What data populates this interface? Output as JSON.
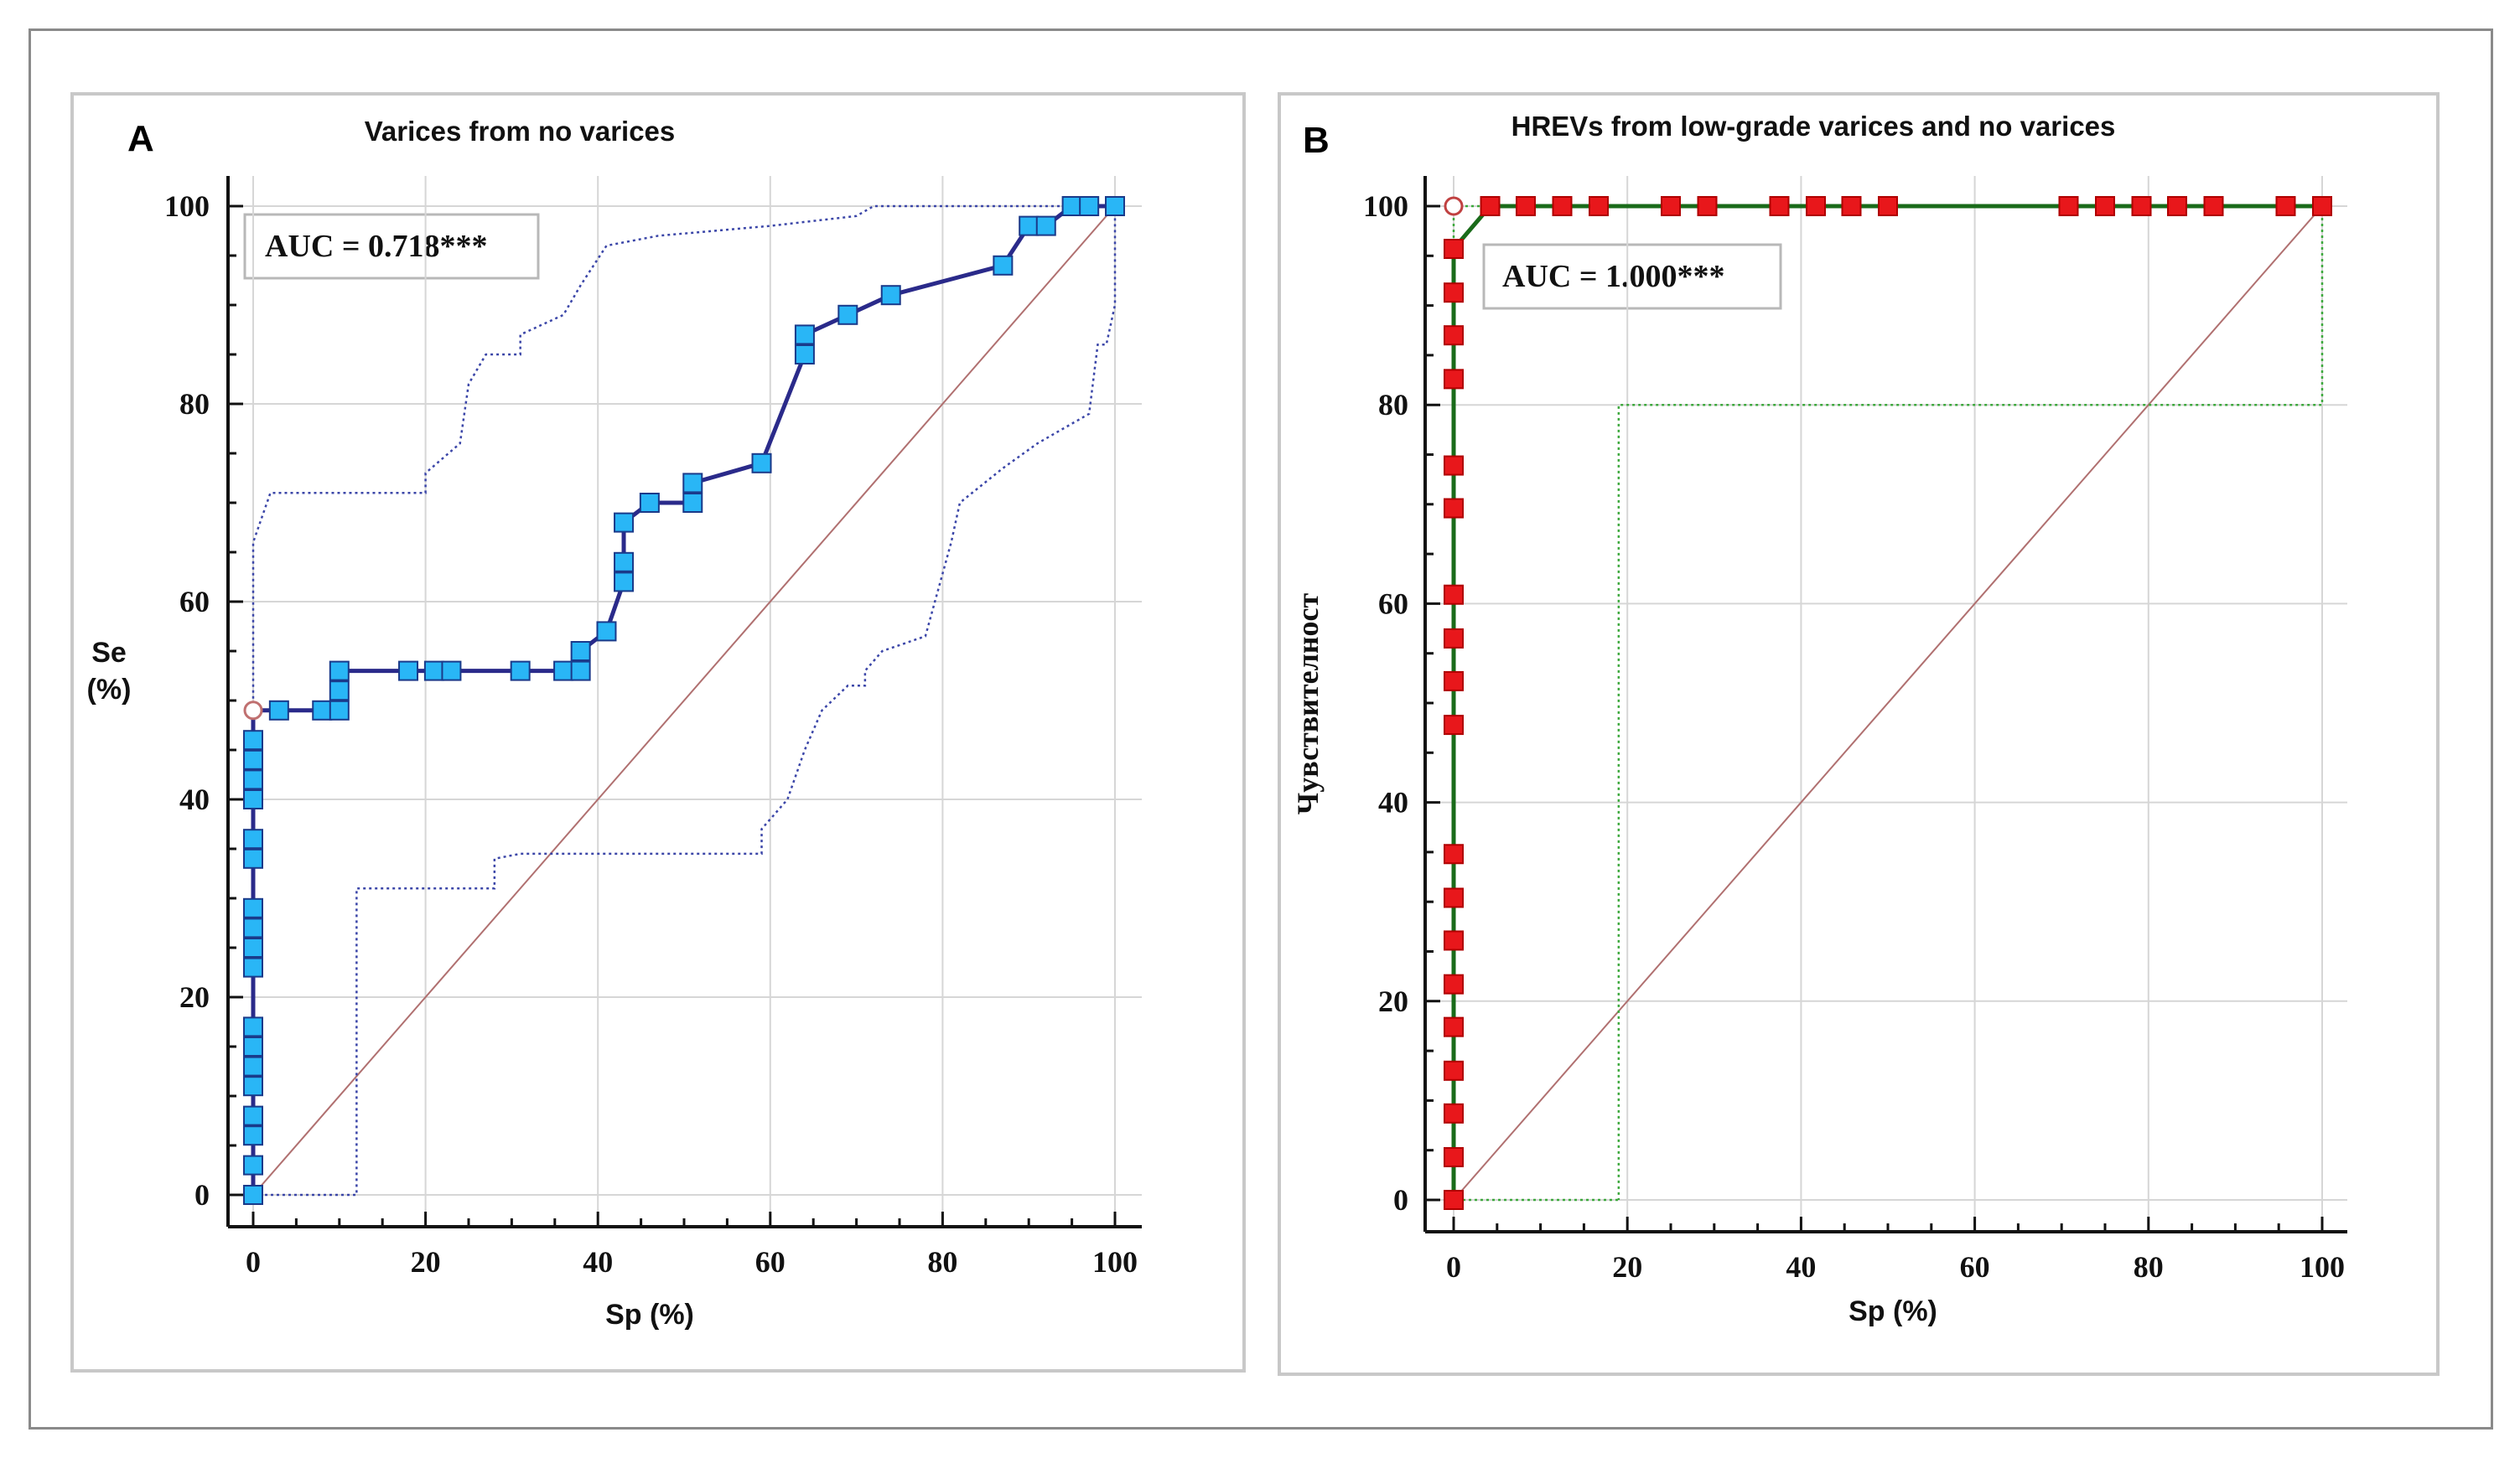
{
  "colors": {
    "panel_a_curve": "#2a2a8a",
    "panel_a_marker": "#29b6f6",
    "panel_a_ci": "#3b46a8",
    "panel_b_curve": "#1a6b1a",
    "panel_b_marker": "#e8171b",
    "panel_b_ci": "#3ca83c",
    "diagonal": "#b07070",
    "grid": "#d6d6d6"
  },
  "chart_data": [
    {
      "panel": "A",
      "type": "line",
      "title": "Varices from no varices",
      "xlabel": "Sp (%)",
      "ylabel": [
        "Se",
        "(%)"
      ],
      "xlim": [
        0,
        100
      ],
      "ylim": [
        0,
        100
      ],
      "xticks": [
        0,
        20,
        40,
        60,
        80,
        100
      ],
      "yticks": [
        0,
        20,
        40,
        60,
        80,
        100
      ],
      "grid": true,
      "auc_label": "AUC = 0.718***",
      "roc_points": [
        [
          0,
          0
        ],
        [
          0,
          3
        ],
        [
          0,
          6
        ],
        [
          0,
          8
        ],
        [
          0,
          11
        ],
        [
          0,
          13
        ],
        [
          0,
          15
        ],
        [
          0,
          17
        ],
        [
          0,
          23
        ],
        [
          0,
          25
        ],
        [
          0,
          27
        ],
        [
          0,
          29
        ],
        [
          0,
          34
        ],
        [
          0,
          36
        ],
        [
          0,
          40
        ],
        [
          0,
          42
        ],
        [
          0,
          44
        ],
        [
          0,
          46
        ],
        [
          0,
          49
        ],
        [
          3,
          49
        ],
        [
          8,
          49
        ],
        [
          10,
          49
        ],
        [
          10,
          51
        ],
        [
          10,
          53
        ],
        [
          18,
          53
        ],
        [
          21,
          53
        ],
        [
          23,
          53
        ],
        [
          31,
          53
        ],
        [
          36,
          53
        ],
        [
          38,
          53
        ],
        [
          38,
          55
        ],
        [
          41,
          57
        ],
        [
          43,
          62
        ],
        [
          43,
          64
        ],
        [
          43,
          68
        ],
        [
          46,
          70
        ],
        [
          51,
          70
        ],
        [
          51,
          72
        ],
        [
          59,
          74
        ],
        [
          64,
          85
        ],
        [
          64,
          87
        ],
        [
          69,
          89
        ],
        [
          74,
          91
        ],
        [
          87,
          94
        ],
        [
          90,
          98
        ],
        [
          92,
          98
        ],
        [
          95,
          100
        ],
        [
          97,
          100
        ],
        [
          100,
          100
        ]
      ],
      "open_marker": [
        0,
        49
      ],
      "ci_upper": [
        [
          0,
          49
        ],
        [
          0,
          66
        ],
        [
          2,
          71
        ],
        [
          20,
          71
        ],
        [
          20,
          73
        ],
        [
          24,
          76
        ],
        [
          25,
          82
        ],
        [
          27,
          85
        ],
        [
          31,
          85
        ],
        [
          31,
          87
        ],
        [
          36,
          89
        ],
        [
          38,
          92
        ],
        [
          41,
          96
        ],
        [
          47,
          97
        ],
        [
          60,
          98
        ],
        [
          70,
          99
        ],
        [
          72,
          100
        ],
        [
          100,
          100
        ]
      ],
      "ci_lower": [
        [
          0,
          0
        ],
        [
          0,
          0
        ],
        [
          12,
          0
        ],
        [
          12,
          31
        ],
        [
          28,
          31
        ],
        [
          28,
          34
        ],
        [
          31,
          34.5
        ],
        [
          59,
          34.5
        ],
        [
          59,
          37
        ],
        [
          62,
          40
        ],
        [
          64,
          45
        ],
        [
          66,
          49
        ],
        [
          69,
          51.5
        ],
        [
          71,
          51.5
        ],
        [
          71,
          53
        ],
        [
          73,
          55
        ],
        [
          78,
          56.5
        ],
        [
          81,
          66
        ],
        [
          82,
          70
        ],
        [
          87,
          73.5
        ],
        [
          91,
          76
        ],
        [
          97,
          79
        ],
        [
          98,
          86
        ],
        [
          99,
          86
        ],
        [
          100,
          90
        ],
        [
          100,
          100
        ]
      ]
    },
    {
      "panel": "B",
      "type": "line",
      "title": "HREVs from low-grade varices and no varices",
      "xlabel": "Sp (%)",
      "ylabel": "Чувствителност",
      "xlim": [
        0,
        100
      ],
      "ylim": [
        0,
        100
      ],
      "xticks": [
        0,
        20,
        40,
        60,
        80,
        100
      ],
      "yticks": [
        0,
        20,
        40,
        60,
        80,
        100
      ],
      "grid": true,
      "auc_label": "AUC = 1.000***",
      "roc_points": [
        [
          0,
          0
        ],
        [
          0,
          4.3
        ],
        [
          0,
          8.7
        ],
        [
          0,
          13
        ],
        [
          0,
          17.4
        ],
        [
          0,
          21.7
        ],
        [
          0,
          26.1
        ],
        [
          0,
          30.4
        ],
        [
          0,
          34.8
        ],
        [
          0,
          47.8
        ],
        [
          0,
          52.2
        ],
        [
          0,
          56.5
        ],
        [
          0,
          60.9
        ],
        [
          0,
          69.6
        ],
        [
          0,
          73.9
        ],
        [
          0,
          82.6
        ],
        [
          0,
          87
        ],
        [
          0,
          91.3
        ],
        [
          0,
          95.7
        ],
        [
          4.2,
          100
        ],
        [
          8.3,
          100
        ],
        [
          12.5,
          100
        ],
        [
          16.7,
          100
        ],
        [
          25,
          100
        ],
        [
          29.2,
          100
        ],
        [
          37.5,
          100
        ],
        [
          41.7,
          100
        ],
        [
          45.8,
          100
        ],
        [
          50,
          100
        ],
        [
          70.8,
          100
        ],
        [
          75,
          100
        ],
        [
          79.2,
          100
        ],
        [
          83.3,
          100
        ],
        [
          87.5,
          100
        ],
        [
          95.8,
          100
        ],
        [
          100,
          100
        ]
      ],
      "open_marker": [
        0,
        100
      ],
      "ci_upper": [
        [
          0,
          100
        ],
        [
          100,
          100
        ],
        [
          100,
          80
        ],
        [
          19,
          80
        ],
        [
          19,
          0
        ]
      ],
      "ci_lower": [
        [
          0,
          100
        ],
        [
          0,
          0
        ],
        [
          19,
          0
        ]
      ]
    }
  ]
}
